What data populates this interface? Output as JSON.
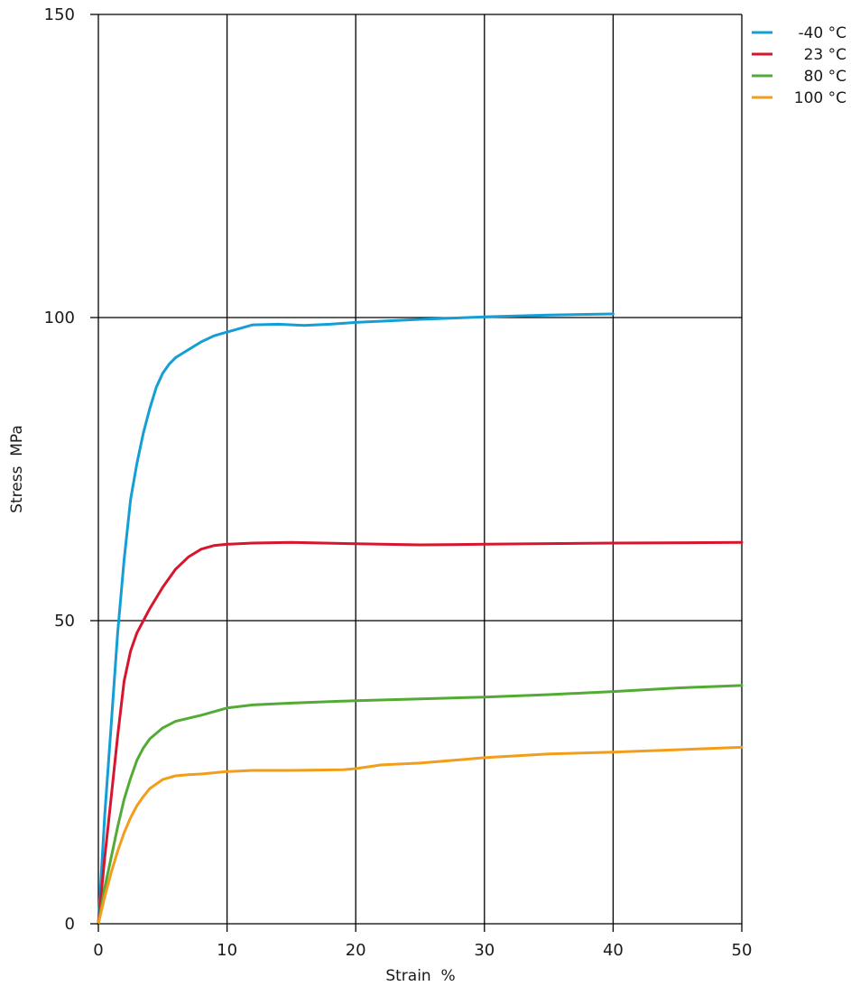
{
  "chart_data": {
    "type": "line",
    "xlabel": "Strain  %",
    "ylabel": "Stress  MPa",
    "xlim": [
      0,
      50
    ],
    "ylim": [
      0,
      150
    ],
    "x_ticks": [
      0,
      10,
      20,
      30,
      40,
      50
    ],
    "y_ticks": [
      0,
      50,
      100,
      150
    ],
    "grid": true,
    "legend_position": "top-right outside plot",
    "series": [
      {
        "name": "-40 °C",
        "color": "#139fd6",
        "points": [
          [
            0,
            0
          ],
          [
            0.5,
            18
          ],
          [
            1,
            33
          ],
          [
            1.5,
            48
          ],
          [
            2,
            60
          ],
          [
            2.5,
            70
          ],
          [
            3,
            76
          ],
          [
            3.5,
            81
          ],
          [
            4,
            85
          ],
          [
            4.5,
            88.5
          ],
          [
            5,
            90.8
          ],
          [
            5.5,
            92.3
          ],
          [
            6,
            93.4
          ],
          [
            7,
            94.7
          ],
          [
            8,
            96
          ],
          [
            9,
            97
          ],
          [
            10,
            97.6
          ],
          [
            12,
            98.8
          ],
          [
            14,
            98.9
          ],
          [
            16,
            98.7
          ],
          [
            18,
            98.9
          ],
          [
            20,
            99.2
          ],
          [
            25,
            99.7
          ],
          [
            30,
            100.1
          ],
          [
            35,
            100.4
          ],
          [
            40,
            100.6
          ]
        ]
      },
      {
        "name": "23 °C",
        "color": "#d7162e",
        "points": [
          [
            0,
            0
          ],
          [
            0.5,
            11
          ],
          [
            1,
            21
          ],
          [
            1.5,
            31
          ],
          [
            2,
            40
          ],
          [
            2.5,
            45
          ],
          [
            3,
            48
          ],
          [
            3.5,
            50
          ],
          [
            4,
            52
          ],
          [
            5,
            55.5
          ],
          [
            6,
            58.5
          ],
          [
            7,
            60.5
          ],
          [
            8,
            61.8
          ],
          [
            9,
            62.4
          ],
          [
            10,
            62.6
          ],
          [
            12,
            62.8
          ],
          [
            15,
            62.9
          ],
          [
            20,
            62.7
          ],
          [
            25,
            62.5
          ],
          [
            30,
            62.6
          ],
          [
            40,
            62.8
          ],
          [
            50,
            62.9
          ]
        ]
      },
      {
        "name": "80 °C",
        "color": "#53ab35",
        "points": [
          [
            0,
            0
          ],
          [
            0.5,
            6
          ],
          [
            1,
            11
          ],
          [
            1.5,
            16
          ],
          [
            2,
            20.5
          ],
          [
            2.5,
            24
          ],
          [
            3,
            27
          ],
          [
            3.5,
            29
          ],
          [
            4,
            30.5
          ],
          [
            5,
            32.3
          ],
          [
            6,
            33.4
          ],
          [
            7,
            33.9
          ],
          [
            8,
            34.4
          ],
          [
            9,
            35
          ],
          [
            10,
            35.6
          ],
          [
            12,
            36.1
          ],
          [
            15,
            36.4
          ],
          [
            20,
            36.8
          ],
          [
            25,
            37.1
          ],
          [
            30,
            37.4
          ],
          [
            35,
            37.8
          ],
          [
            40,
            38.3
          ],
          [
            45,
            38.9
          ],
          [
            50,
            39.3
          ]
        ]
      },
      {
        "name": "100 °C",
        "color": "#f29e1b",
        "points": [
          [
            0,
            0
          ],
          [
            0.5,
            4.5
          ],
          [
            1,
            8.5
          ],
          [
            1.5,
            12
          ],
          [
            2,
            15
          ],
          [
            2.5,
            17.5
          ],
          [
            3,
            19.5
          ],
          [
            3.5,
            21
          ],
          [
            4,
            22.3
          ],
          [
            5,
            23.8
          ],
          [
            6,
            24.4
          ],
          [
            7,
            24.6
          ],
          [
            8,
            24.7
          ],
          [
            10,
            25.1
          ],
          [
            12,
            25.3
          ],
          [
            15,
            25.3
          ],
          [
            19,
            25.4
          ],
          [
            20,
            25.6
          ],
          [
            22,
            26.2
          ],
          [
            25,
            26.5
          ],
          [
            30,
            27.4
          ],
          [
            35,
            28
          ],
          [
            40,
            28.3
          ],
          [
            45,
            28.7
          ],
          [
            50,
            29.1
          ]
        ]
      }
    ]
  }
}
